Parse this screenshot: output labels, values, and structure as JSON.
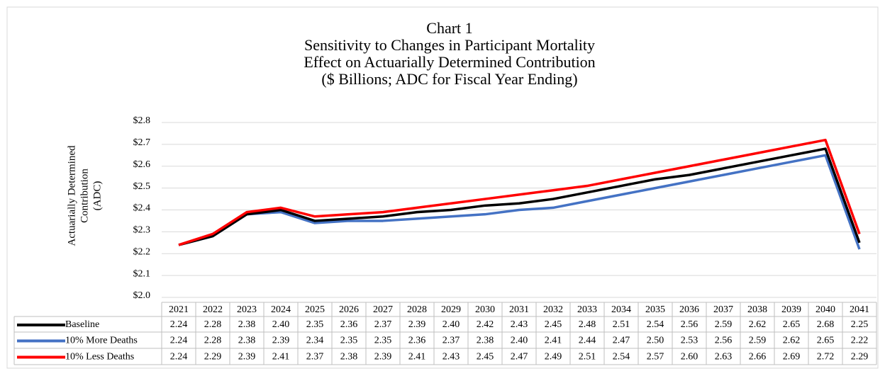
{
  "chart_data": {
    "type": "line",
    "title": [
      "Chart 1",
      "Sensitivity to Changes in Participant Mortality",
      "Effect on Actuarially Determined Contribution",
      "($ Billions; ADC for Fiscal Year Ending)"
    ],
    "y_label": [
      "Actuarially Determined",
      "Contribution",
      "(ADC)"
    ],
    "categories": [
      "2021",
      "2022",
      "2023",
      "2024",
      "2025",
      "2026",
      "2027",
      "2028",
      "2029",
      "2030",
      "2031",
      "2032",
      "2033",
      "2034",
      "2035",
      "2036",
      "2037",
      "2038",
      "2039",
      "2040",
      "2041"
    ],
    "ylim": [
      2.0,
      2.8
    ],
    "yticks": [
      {
        "value": 2.0,
        "label": "$2.0"
      },
      {
        "value": 2.1,
        "label": "$2.1"
      },
      {
        "value": 2.2,
        "label": "$2.2"
      },
      {
        "value": 2.3,
        "label": "$2.3"
      },
      {
        "value": 2.4,
        "label": "$2.4"
      },
      {
        "value": 2.5,
        "label": "$2.5"
      },
      {
        "value": 2.6,
        "label": "$2.6"
      },
      {
        "value": 2.7,
        "label": "$2.7"
      },
      {
        "value": 2.8,
        "label": "$2.8"
      }
    ],
    "grid": true,
    "series": [
      {
        "name": "Baseline",
        "color": "#000000",
        "values": [
          2.24,
          2.28,
          2.38,
          2.4,
          2.35,
          2.36,
          2.37,
          2.39,
          2.4,
          2.42,
          2.43,
          2.45,
          2.48,
          2.51,
          2.54,
          2.56,
          2.59,
          2.62,
          2.65,
          2.68,
          2.25
        ],
        "value_labels": [
          "2.24",
          "2.28",
          "2.38",
          "2.40",
          "2.35",
          "2.36",
          "2.37",
          "2.39",
          "2.40",
          "2.42",
          "2.43",
          "2.45",
          "2.48",
          "2.51",
          "2.54",
          "2.56",
          "2.59",
          "2.62",
          "2.65",
          "2.68",
          "2.25"
        ]
      },
      {
        "name": "10% More Deaths",
        "color": "#4472c4",
        "values": [
          2.24,
          2.28,
          2.38,
          2.39,
          2.34,
          2.35,
          2.35,
          2.36,
          2.37,
          2.38,
          2.4,
          2.41,
          2.44,
          2.47,
          2.5,
          2.53,
          2.56,
          2.59,
          2.62,
          2.65,
          2.22
        ],
        "value_labels": [
          "2.24",
          "2.28",
          "2.38",
          "2.39",
          "2.34",
          "2.35",
          "2.35",
          "2.36",
          "2.37",
          "2.38",
          "2.40",
          "2.41",
          "2.44",
          "2.47",
          "2.50",
          "2.53",
          "2.56",
          "2.59",
          "2.62",
          "2.65",
          "2.22"
        ]
      },
      {
        "name": "10% Less Deaths",
        "color": "#ff0000",
        "values": [
          2.24,
          2.29,
          2.39,
          2.41,
          2.37,
          2.38,
          2.39,
          2.41,
          2.43,
          2.45,
          2.47,
          2.49,
          2.51,
          2.54,
          2.57,
          2.6,
          2.63,
          2.66,
          2.69,
          2.72,
          2.29
        ],
        "value_labels": [
          "2.24",
          "2.29",
          "2.39",
          "2.41",
          "2.37",
          "2.38",
          "2.39",
          "2.41",
          "2.43",
          "2.45",
          "2.47",
          "2.49",
          "2.51",
          "2.54",
          "2.57",
          "2.60",
          "2.63",
          "2.66",
          "2.69",
          "2.72",
          "2.29"
        ]
      }
    ]
  }
}
